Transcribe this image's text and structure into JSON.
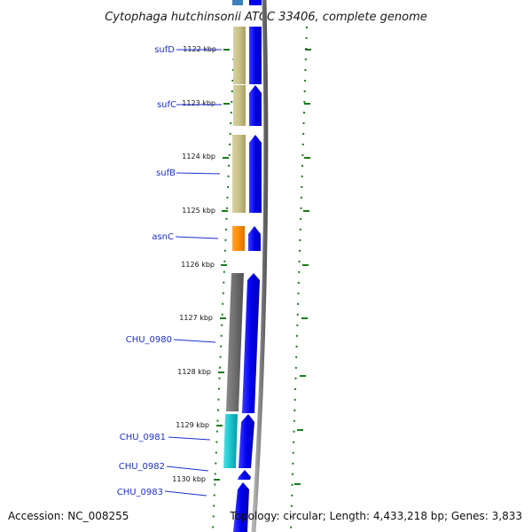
{
  "title": "Cytophaga hutchinsonii ATCC 33406, complete genome",
  "accession": "Accession: NC_008255",
  "topology": "Topology: circular; Length: 4,433,218 bp; Genes: 3,833",
  "ticks": [
    "1122 kbp",
    "1123 kbp",
    "1124 kbp",
    "1125 kbp",
    "1126 kbp",
    "1127 kbp",
    "1128 kbp",
    "1129 kbp",
    "1130 kbp"
  ],
  "genes": [
    {
      "name": "sufD",
      "category": "tan"
    },
    {
      "name": "sufC",
      "category": "tan"
    },
    {
      "name": "sufB",
      "category": "tan"
    },
    {
      "name": "asnC",
      "category": "orange"
    },
    {
      "name": "CHU_0980",
      "category": "gray"
    },
    {
      "name": "CHU_0981",
      "category": "cyan"
    },
    {
      "name": "CHU_0982",
      "category": "none"
    },
    {
      "name": "CHU_0983",
      "category": "none"
    }
  ],
  "colors": {
    "tan": "#c9c088",
    "orange": "#ff8c00",
    "gray": "#6e6e6e",
    "cyan": "#18c4cc",
    "gene_blue": "#0000ee",
    "backbone": "#8a8a8a",
    "gc_dots": "#1b7a1b",
    "label_blue": "#1c2fd0"
  }
}
